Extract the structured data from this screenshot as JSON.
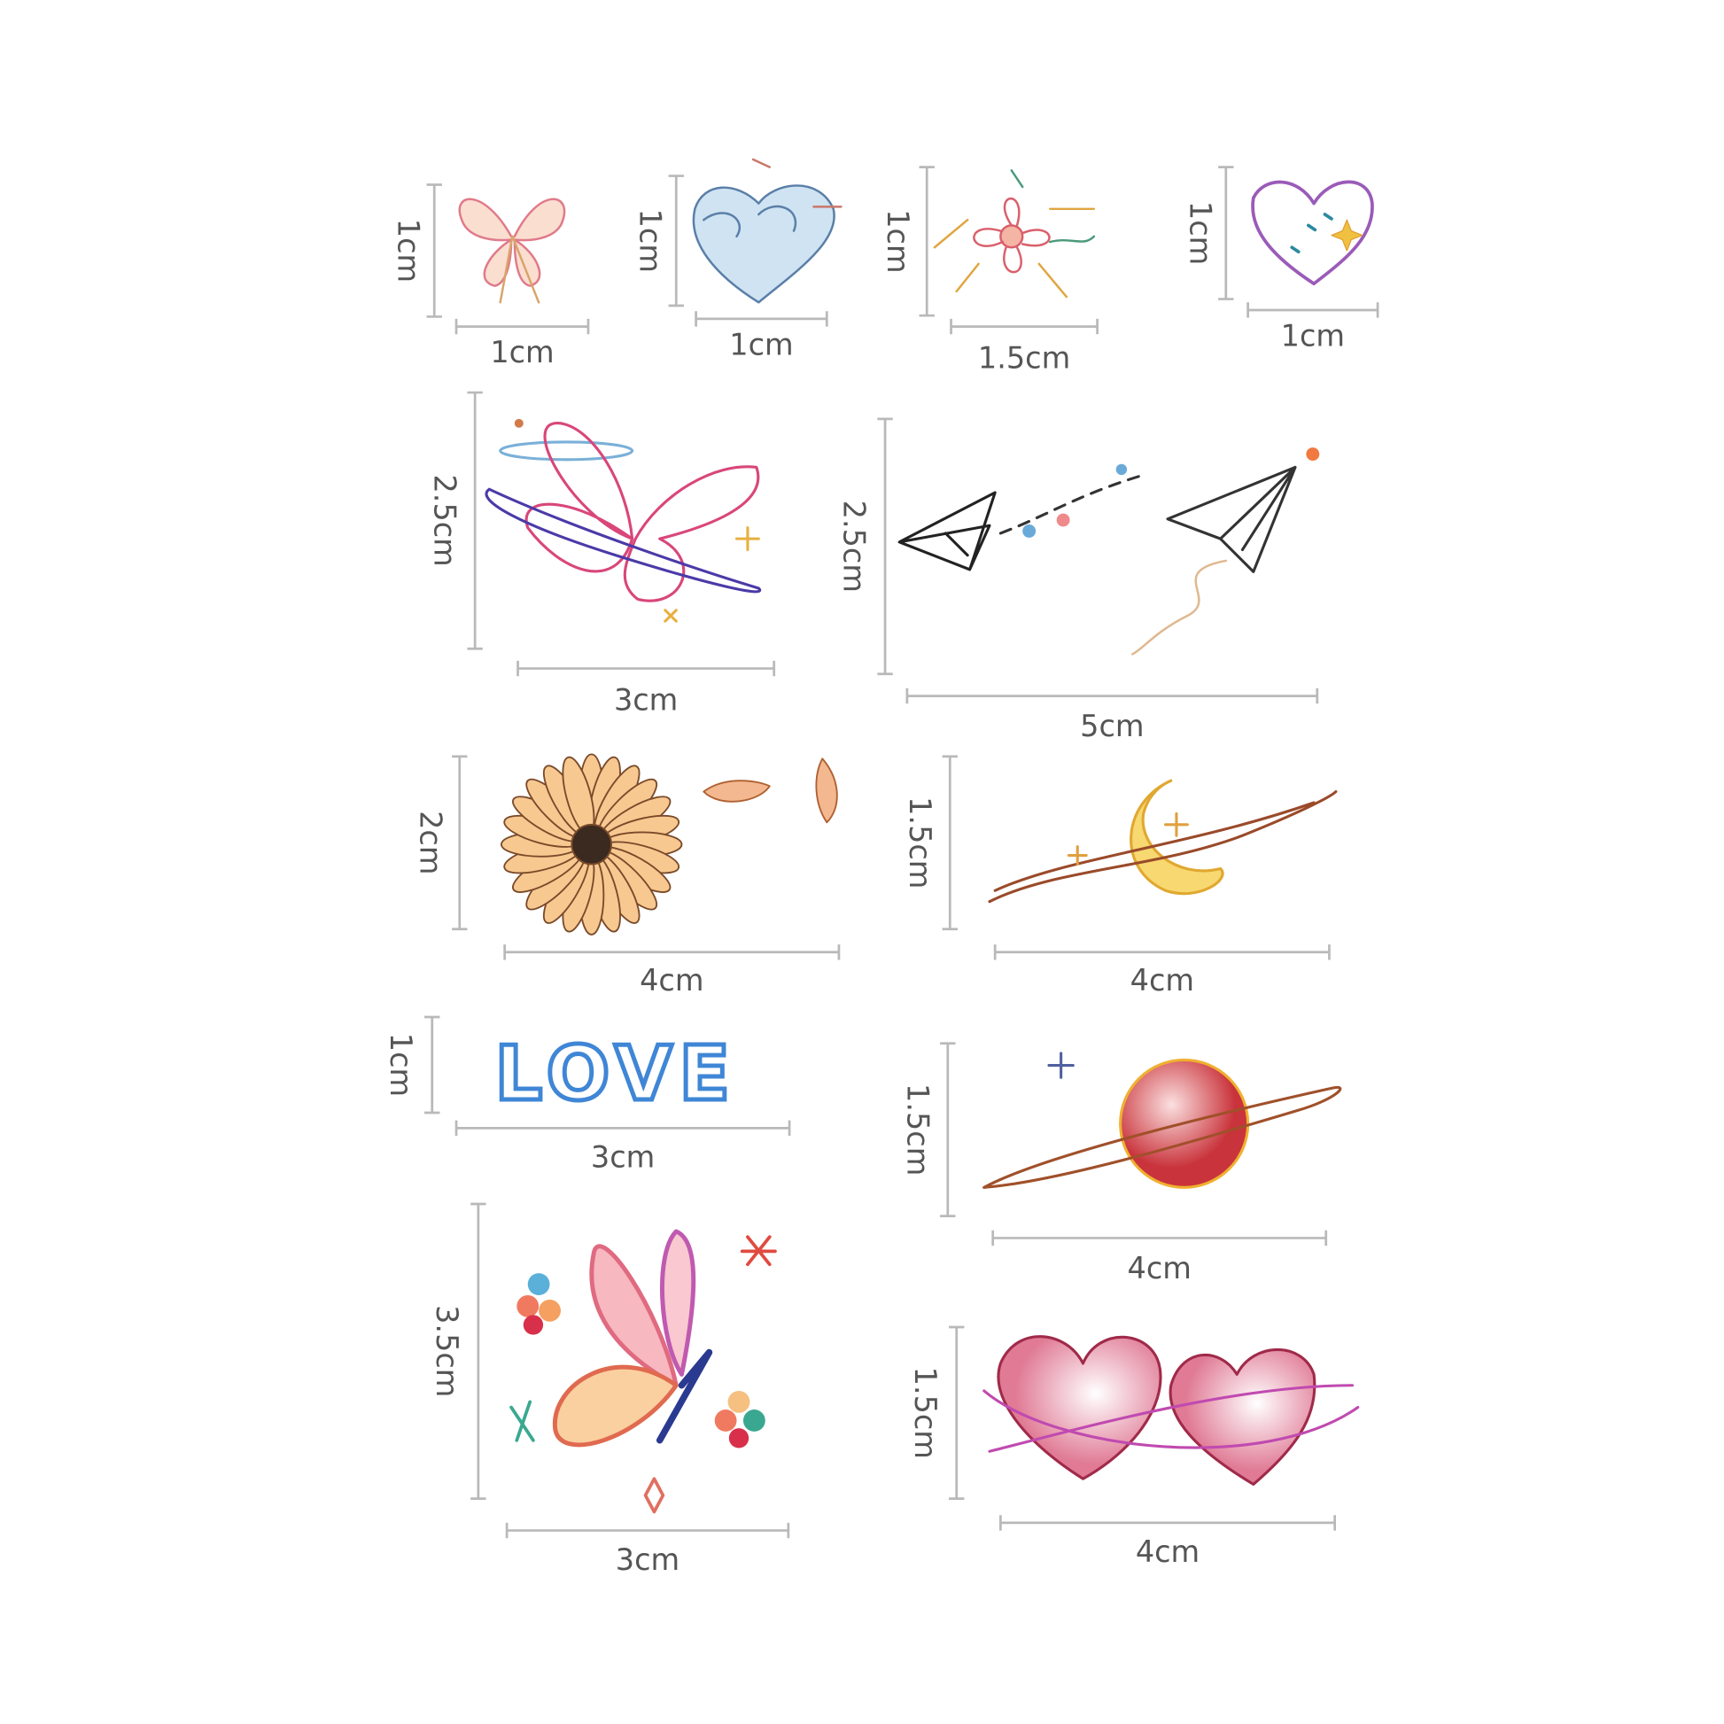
{
  "stickers": [
    {
      "subject": "small pink butterfly",
      "width_label": "1cm",
      "height_label": "1cm"
    },
    {
      "subject": "wave heart",
      "width_label": "1cm",
      "height_label": "1cm"
    },
    {
      "subject": "flower",
      "width_label": "1.5cm",
      "height_label": "1cm"
    },
    {
      "subject": "star heart",
      "width_label": "1cm",
      "height_label": "1cm"
    },
    {
      "subject": "butterfly with orbit",
      "width_label": "3cm",
      "height_label": "2.5cm"
    },
    {
      "subject": "paper planes",
      "width_label": "5cm",
      "height_label": "2.5cm"
    },
    {
      "subject": "sunflower with petals",
      "width_label": "4cm",
      "height_label": "2cm"
    },
    {
      "subject": "moon with orbit",
      "width_label": "4cm",
      "height_label": "1.5cm"
    },
    {
      "subject": "love lettering",
      "width_label": "3cm",
      "height_label": "1cm",
      "text": "LOVE"
    },
    {
      "subject": "planet",
      "width_label": "4cm",
      "height_label": "1.5cm"
    },
    {
      "subject": "colorful butterfly",
      "width_label": "3cm",
      "height_label": "3.5cm"
    },
    {
      "subject": "two hearts",
      "width_label": "4cm",
      "height_label": "1.5cm"
    }
  ],
  "colors": {
    "dimension_lines": "#b9b9b9",
    "label_text": "#555555",
    "background": "#ffffff"
  }
}
